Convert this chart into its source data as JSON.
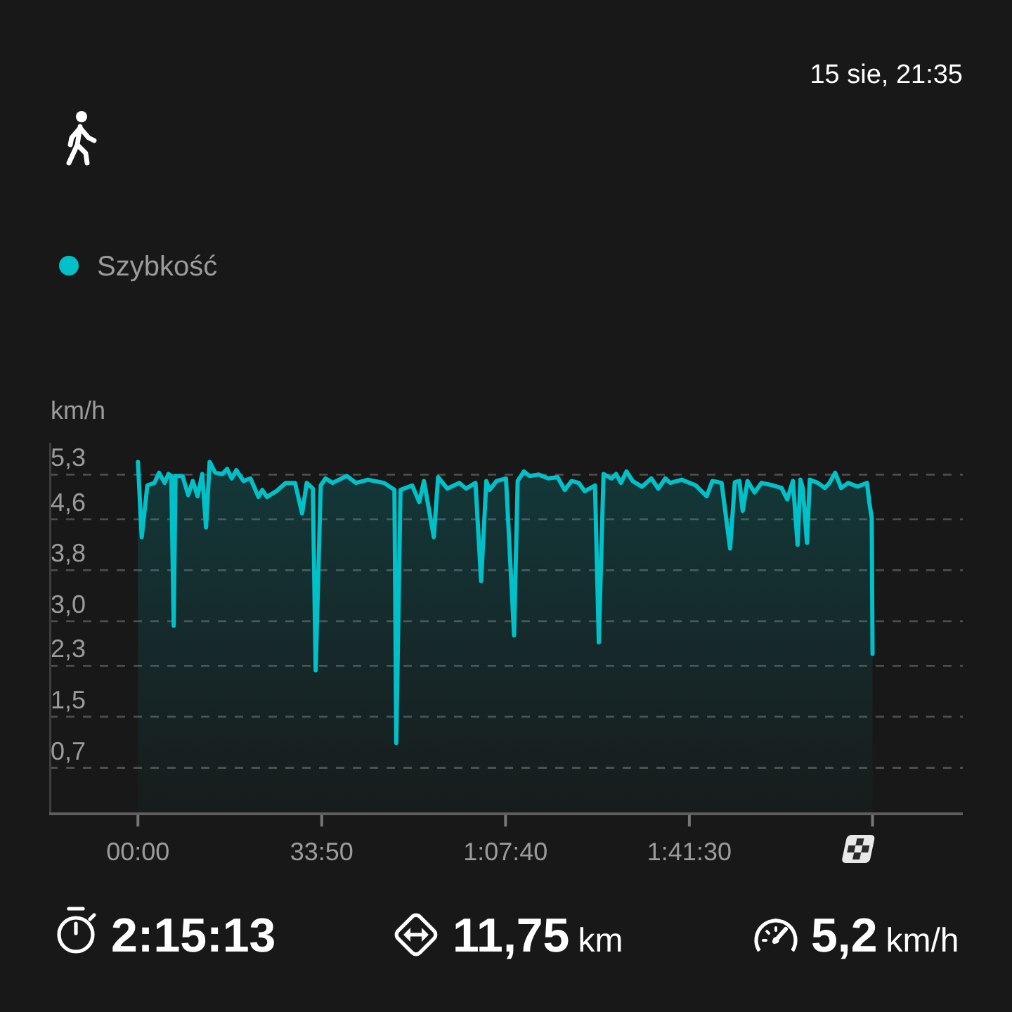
{
  "chart_data": {
    "type": "area",
    "subtitle": "15 sie, 21:35",
    "ylabel": "km/h",
    "legend": "top left",
    "grid": "y",
    "xlim": [
      -980,
      9110
    ],
    "xticks": [
      {
        "value": 0,
        "label": "00:00"
      },
      {
        "value": 2030,
        "label": "33:50"
      },
      {
        "value": 4060,
        "label": "1:07:40"
      },
      {
        "value": 6090,
        "label": "1:41:30"
      },
      {
        "value": 8113,
        "label": null
      }
    ],
    "ylim": [
      0,
      5.8
    ],
    "yticks": [
      {
        "value": 0.7,
        "label": "0,7"
      },
      {
        "value": 1.5,
        "label": "1,5"
      },
      {
        "value": 2.3,
        "label": "2,3"
      },
      {
        "value": 3,
        "label": "3,0"
      },
      {
        "value": 3.8,
        "label": "3,8"
      },
      {
        "value": 4.6,
        "label": "4,6"
      },
      {
        "value": 5.3,
        "label": "5,3"
      }
    ],
    "x": [
      0,
      42,
      104,
      182,
      233,
      295,
      337,
      368,
      395,
      415,
      492,
      555,
      606,
      659,
      710,
      752,
      792,
      854,
      932,
      985,
      1036,
      1087,
      1165,
      1243,
      1331,
      1373,
      1424,
      1528,
      1631,
      1735,
      1813,
      1864,
      1932,
      1963,
      2019,
      2072,
      2150,
      2305,
      2408,
      2540,
      2718,
      2833,
      2853,
      2900,
      3029,
      3107,
      3159,
      3268,
      3315,
      3417,
      3548,
      3625,
      3728,
      3790,
      3848,
      3883,
      3961,
      4065,
      4154,
      4194,
      4262,
      4324,
      4427,
      4531,
      4635,
      4713,
      4790,
      4868,
      4935,
      5048,
      5090,
      5142,
      5230,
      5281,
      5334,
      5396,
      5463,
      5567,
      5670,
      5747,
      5825,
      5878,
      6006,
      6162,
      6281,
      6344,
      6446,
      6540,
      6592,
      6643,
      6679,
      6732,
      6810,
      6887,
      7016,
      7109,
      7171,
      7234,
      7285,
      7316,
      7342,
      7389,
      7420,
      7509,
      7586,
      7638,
      7700,
      7767,
      7844,
      7948,
      8052,
      8077,
      8104,
      8113
    ],
    "series": [
      {
        "name": "Szybkość",
        "color": "#00c0c8",
        "values": [
          5.5,
          4.32,
          5.13,
          5.17,
          5.33,
          5.17,
          5.31,
          5.28,
          2.93,
          5.28,
          5.28,
          4.98,
          5.2,
          4.96,
          5.31,
          4.47,
          5.5,
          5.33,
          5.31,
          5.39,
          5.24,
          5.37,
          5.2,
          5.24,
          4.95,
          5.06,
          4.95,
          5.04,
          5.17,
          5.17,
          4.69,
          5.17,
          5.08,
          2.23,
          5.13,
          5.24,
          5.17,
          5.28,
          5.17,
          5.22,
          5.17,
          5.06,
          1.09,
          5.06,
          5.13,
          4.87,
          5.2,
          4.32,
          5.26,
          5.08,
          5.17,
          5.08,
          5.17,
          3.63,
          5.2,
          5.06,
          5.2,
          5.24,
          2.78,
          5.2,
          5.35,
          5.28,
          5.3,
          5.24,
          5.26,
          5.06,
          5.2,
          5.17,
          5.04,
          5.13,
          2.67,
          5.31,
          5.24,
          5.31,
          5.17,
          5.35,
          5.2,
          5.11,
          5.24,
          5.08,
          5.24,
          5.17,
          5.22,
          5.13,
          4.96,
          5.2,
          5.17,
          4.14,
          5.18,
          5.2,
          4.73,
          5.2,
          5.02,
          5.17,
          5.13,
          5.09,
          4.91,
          5.2,
          4.2,
          5.22,
          5.09,
          4.23,
          5.22,
          5.17,
          5.09,
          5.17,
          5.33,
          5.09,
          5.17,
          5.11,
          5.17,
          4.87,
          4.62,
          2.49
        ]
      }
    ],
    "annotations": [
      "2:15:13",
      "11,75 km",
      "5,2 km/h"
    ]
  }
}
